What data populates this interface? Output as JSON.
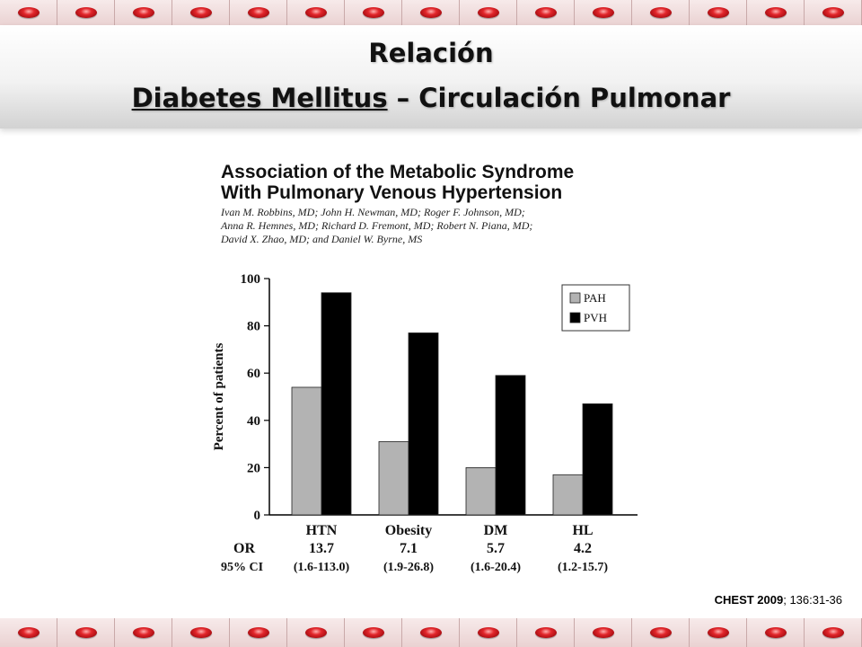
{
  "slide": {
    "title_line1": "Relación",
    "title_line2_underlined": "Diabetes Mellitus",
    "title_line2_rest": " – Circulación Pulmonar"
  },
  "paper": {
    "title_line1": "Association of the Metabolic Syndrome",
    "title_line2": "With Pulmonary Venous Hypertension",
    "authors": [
      "Ivan M. Robbins, MD; John H. Newman, MD; Roger F. Johnson, MD;",
      "Anna R. Hemnes, MD; Richard D. Fremont, MD; Robert N. Piana, MD;",
      "David X. Zhao, MD; and Daniel W. Byrne, MS"
    ]
  },
  "citation": {
    "journal_year": "CHEST 2009",
    "rest": "; 136:31-36"
  },
  "colors": {
    "pah": "#b3b3b3",
    "pvh": "#000000",
    "rbc": "#d4181e",
    "border_bg": "#f1dfdf"
  },
  "chart_data": {
    "type": "bar",
    "categories": [
      "HTN",
      "Obesity",
      "DM",
      "HL"
    ],
    "series": [
      {
        "name": "PAH",
        "values": [
          54,
          31,
          20,
          17
        ]
      },
      {
        "name": "PVH",
        "values": [
          94,
          77,
          59,
          47
        ]
      }
    ],
    "ylabel": "Percent of patients",
    "ylim": [
      0,
      100
    ],
    "yticks": [
      "0",
      "20",
      "40",
      "60",
      "80",
      "100"
    ],
    "legend_position": "top-right",
    "grid": false,
    "extra_rows": [
      {
        "label": "OR",
        "values": [
          "13.7",
          "7.1",
          "5.7",
          "4.2"
        ]
      },
      {
        "label": "95% CI",
        "values": [
          "(1.6-113.0)",
          "(1.9-26.8)",
          "(1.6-20.4)",
          "(1.2-15.7)"
        ]
      }
    ]
  }
}
